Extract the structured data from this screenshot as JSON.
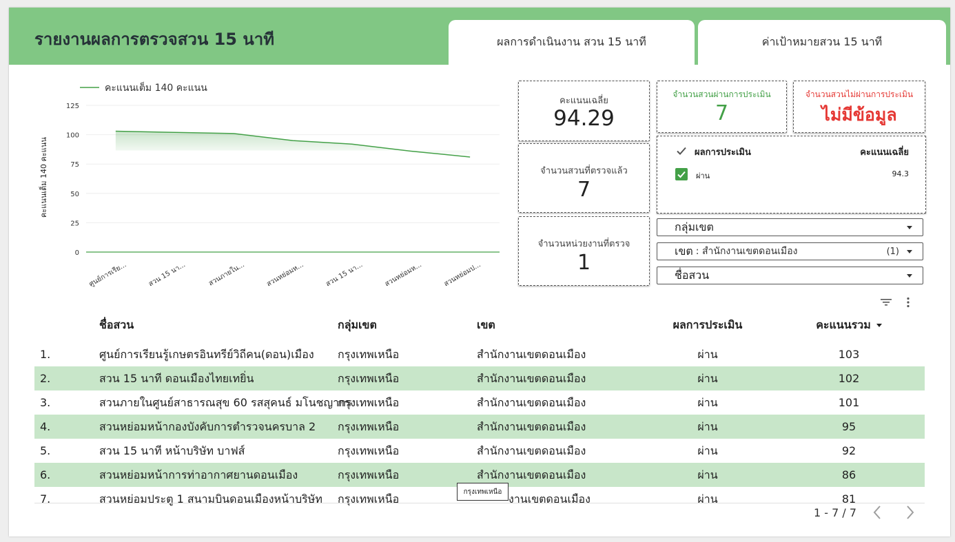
{
  "header": {
    "title": "รายงานผลการตรวจสวน 15 นาที"
  },
  "tabs": [
    {
      "label": "ผลการดำเนินงาน สวน 15 นาที"
    },
    {
      "label": "ค่าเป้าหมายสวน 15 นาที"
    }
  ],
  "colors": {
    "header_bg": "#81c784",
    "line": "#43a047",
    "row_alt": "#c8e6c9",
    "red": "#e53935"
  },
  "chart_data": {
    "type": "area",
    "legend": "คะแนนเต็ม 140 คะแนน",
    "ylabel": "คะแนนเต็ม 140 คะแนน",
    "ylim": [
      0,
      125
    ],
    "yticks": [
      "0",
      "25",
      "50",
      "75",
      "100",
      "125"
    ],
    "categories": [
      "ศูนย์การเรีย...",
      "สวน 15 นา...",
      "สวนภายใน...",
      "สวนหย่อมห...",
      "สวน 15 นา...",
      "สวนหย่อมห...",
      "สวนหย่อมป..."
    ],
    "values": [
      103,
      102,
      101,
      95,
      92,
      86,
      81
    ],
    "grid": true,
    "legend_position": "top-left"
  },
  "kpis": {
    "avg": {
      "label": "คะแนนเฉลี่ย",
      "value": "94.29"
    },
    "passed": {
      "label": "จำนวนสวนผ่านการประเมิน",
      "value": "7"
    },
    "failed": {
      "label": "จำนวนสวนไม่ผ่านการประเมิน",
      "value": "ไม่มีข้อมูล"
    },
    "inspected": {
      "label": "จำนวนสวนที่ตรวจแล้ว",
      "value": "7"
    },
    "units": {
      "label": "จำนวนหน่วยงานที่ตรวจ",
      "value": "1"
    }
  },
  "summary_table": {
    "col_result": "ผลการประเมิน",
    "col_avg": "คะแนนเฉลี่ย",
    "rows": [
      {
        "result": "ผ่าน",
        "avg": "94.3"
      }
    ]
  },
  "filters": {
    "group": {
      "label": "กลุ่มเขต"
    },
    "district": {
      "label": "เขต",
      "value": ": สำนักงานเขตดอนเมือง",
      "count": "(1)"
    },
    "park": {
      "label": "ชื่อสวน"
    }
  },
  "table": {
    "headers": {
      "name": "ชื่อสวน",
      "group": "กลุ่มเขต",
      "district": "เขต",
      "result": "ผลการประเมิน",
      "score": "คะแนนรวม"
    },
    "rows": [
      {
        "idx": "1.",
        "name": "ศูนย์การเรียนรู้เกษตรอินทรีย์วิถีคน(ดอน)เมือง",
        "group": "กรุงเทพเหนือ",
        "district": "สำนักงานเขตดอนเมือง",
        "result": "ผ่าน",
        "score": "103"
      },
      {
        "idx": "2.",
        "name": "สวน 15 นาที ดอนเมืองไทยเทยิ่น",
        "group": "กรุงเทพเหนือ",
        "district": "สำนักงานเขตดอนเมือง",
        "result": "ผ่าน",
        "score": "102"
      },
      {
        "idx": "3.",
        "name": "สวนภายในศูนย์สาธารณสุข 60 รสสุคนธ์ มโนชญากร",
        "group": "กรุงเทพเหนือ",
        "district": "สำนักงานเขตดอนเมือง",
        "result": "ผ่าน",
        "score": "101"
      },
      {
        "idx": "4.",
        "name": "สวนหย่อมหน้ากองบังคับการตำรวจนครบาล 2",
        "group": "กรุงเทพเหนือ",
        "district": "สำนักงานเขตดอนเมือง",
        "result": "ผ่าน",
        "score": "95"
      },
      {
        "idx": "5.",
        "name": "สวน 15 นาที หน้าบริษัท บาฟส์",
        "group": "กรุงเทพเหนือ",
        "district": "สำนักงานเขตดอนเมือง",
        "result": "ผ่าน",
        "score": "92"
      },
      {
        "idx": "6.",
        "name": "สวนหย่อมหน้าการท่าอากาศยานดอนเมือง",
        "group": "กรุงเทพเหนือ",
        "district": "สำนักงานเขตดอนเมือง",
        "result": "ผ่าน",
        "score": "86"
      },
      {
        "idx": "7.",
        "name": "สวนหย่อมประตู 1 สนามบินดอนเมืองหน้าบริษัท",
        "group": "กรุงเทพเหนือ",
        "district": "งานเขตดอนเมือง",
        "result": "ผ่าน",
        "score": "81"
      }
    ],
    "pagination": "1 - 7 / 7",
    "tooltip": "กรุงเทพเหนือ"
  }
}
